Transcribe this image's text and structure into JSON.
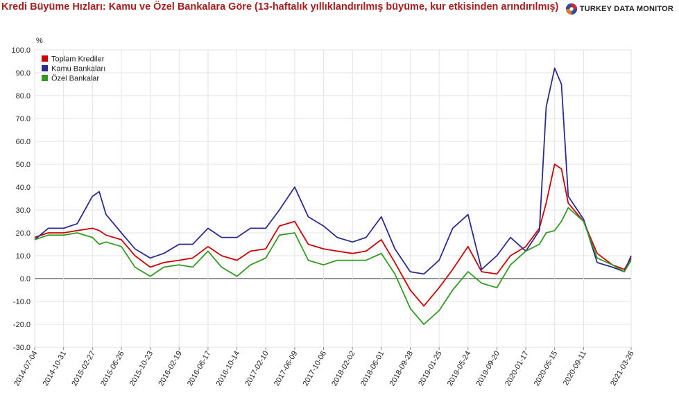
{
  "title": "Kredi Büyüme Hızları: Kamu ve Özel Bankalara Göre (13-haftalık yıllıklandırılmış büyüme, kur etkisinden arındırılmış)",
  "logo_text": "TURKEY DATA MONITOR",
  "logo_icon": "globe-logo-icon",
  "colors": {
    "title": "#a51d1d",
    "grid": "#e3e3e3",
    "zero_line": "#555555"
  },
  "chart_data": {
    "type": "line",
    "title": "Kredi Büyüme Hızları: Kamu ve Özel Bankalara Göre (13-haftalık yıllıklandırılmış büyüme, kur etkisinden arındırılmış)",
    "ylabel": "%",
    "ylim": [
      -30,
      100
    ],
    "yticks": [
      "100.0",
      "90.0",
      "80.0",
      "70.0",
      "60.0",
      "50.0",
      "40.0",
      "30.0",
      "20.0",
      "10.0",
      "0.0",
      "-10.0",
      "-20.0",
      "-30.0"
    ],
    "grid": true,
    "legend_position": "top-left",
    "x_tick_labels": [
      "2014-07-04",
      "2014-10-31",
      "2015-02-27",
      "2015-06-26",
      "2015-10-23",
      "2016-02-19",
      "2016-06-17",
      "2016-10-14",
      "2017-02-10",
      "2017-06-09",
      "2017-10-06",
      "2018-02-02",
      "2018-06-01",
      "2018-09-28",
      "2019-01-25",
      "2019-05-24",
      "2019-09-20",
      "2020-01-17",
      "2020-05-15",
      "2020-09-11",
      "2021-03-26"
    ],
    "x": [
      "2014-07-04",
      "2014-08-29",
      "2014-10-31",
      "2014-12-26",
      "2015-02-27",
      "2015-03-27",
      "2015-04-24",
      "2015-06-26",
      "2015-08-21",
      "2015-10-23",
      "2015-12-18",
      "2016-02-19",
      "2016-04-15",
      "2016-06-17",
      "2016-08-12",
      "2016-10-14",
      "2016-12-09",
      "2017-02-10",
      "2017-04-07",
      "2017-06-09",
      "2017-08-04",
      "2017-10-06",
      "2017-12-01",
      "2018-02-02",
      "2018-03-30",
      "2018-06-01",
      "2018-07-27",
      "2018-09-28",
      "2018-11-23",
      "2019-01-25",
      "2019-03-22",
      "2019-05-24",
      "2019-07-19",
      "2019-09-20",
      "2019-11-15",
      "2020-01-17",
      "2020-03-13",
      "2020-04-10",
      "2020-05-15",
      "2020-06-12",
      "2020-07-10",
      "2020-09-11",
      "2020-11-06",
      "2021-01-08",
      "2021-02-26",
      "2021-03-26"
    ],
    "series": [
      {
        "name": "Toplam Krediler",
        "color": "#cc0000",
        "values": [
          18,
          20,
          20,
          21,
          22,
          21,
          19,
          17,
          10,
          5,
          7,
          8,
          9,
          14,
          10,
          8,
          12,
          13,
          23,
          25,
          15,
          13,
          12,
          11,
          12,
          17,
          7,
          -5,
          -12,
          -4,
          4,
          14,
          3,
          2,
          10,
          14,
          22,
          33,
          50,
          48,
          33,
          25,
          11,
          6,
          4,
          9
        ]
      },
      {
        "name": "Kamu Bankaları",
        "color": "#2b2b8f",
        "values": [
          17,
          22,
          22,
          24,
          36,
          38,
          28,
          20,
          13,
          9,
          11,
          15,
          15,
          22,
          18,
          18,
          22,
          22,
          30,
          40,
          27,
          23,
          18,
          16,
          18,
          27,
          13,
          3,
          2,
          8,
          22,
          28,
          4,
          10,
          18,
          12,
          21,
          75,
          92,
          85,
          36,
          26,
          7,
          5,
          3,
          10
        ]
      },
      {
        "name": "Özel Bankalar",
        "color": "#339922",
        "values": [
          17,
          19,
          19,
          20,
          18,
          15,
          16,
          14,
          5,
          1,
          5,
          6,
          5,
          12,
          5,
          1,
          6,
          9,
          19,
          20,
          8,
          6,
          8,
          8,
          8,
          11,
          2,
          -13,
          -20,
          -14,
          -5,
          3,
          -2,
          -4,
          6,
          12,
          15,
          20,
          21,
          25,
          31,
          25,
          9,
          6,
          3,
          8
        ]
      }
    ]
  }
}
